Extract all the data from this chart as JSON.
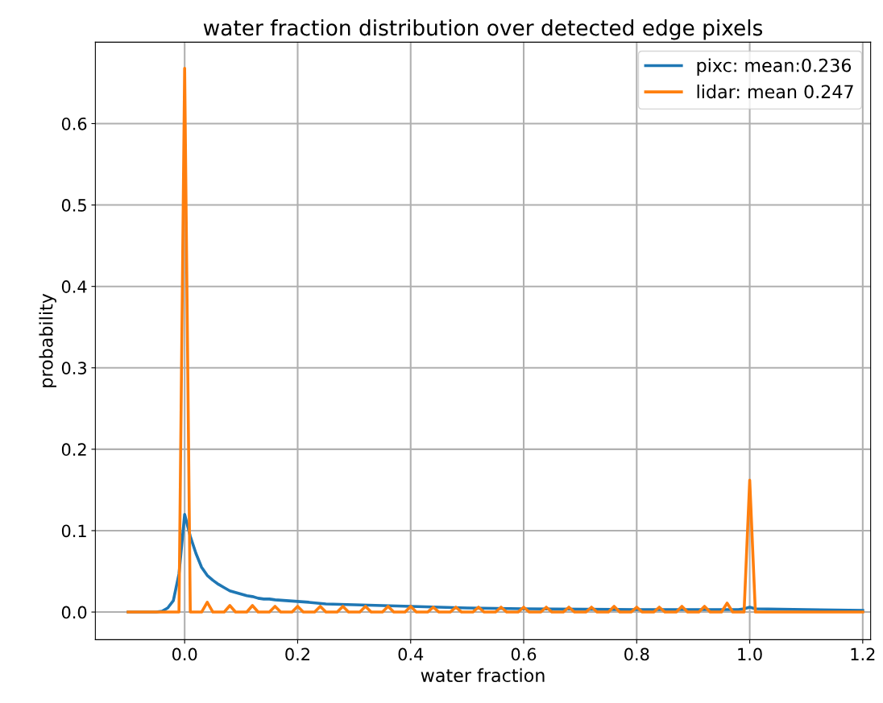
{
  "chart_data": {
    "type": "line",
    "title": "water fraction distribution over detected edge pixels",
    "xlabel": "water fraction",
    "ylabel": "probability",
    "series": [
      {
        "name": "pixc: mean:0.236",
        "color": "#1f77b4",
        "x": [
          -0.1,
          -0.05,
          -0.04,
          -0.03,
          -0.02,
          -0.01,
          0.0,
          0.01,
          0.02,
          0.03,
          0.04,
          0.05,
          0.06,
          0.07,
          0.08,
          0.09,
          0.1,
          0.11,
          0.12,
          0.13,
          0.14,
          0.15,
          0.16,
          0.18,
          0.2,
          0.22,
          0.25,
          0.3,
          0.35,
          0.4,
          0.5,
          0.6,
          0.8,
          0.98,
          0.99,
          1.0,
          1.01,
          1.1,
          1.2
        ],
        "values": [
          0.0,
          0.0,
          0.001,
          0.005,
          0.014,
          0.047,
          0.12,
          0.093,
          0.072,
          0.055,
          0.045,
          0.039,
          0.034,
          0.03,
          0.026,
          0.024,
          0.022,
          0.02,
          0.019,
          0.017,
          0.016,
          0.016,
          0.015,
          0.014,
          0.013,
          0.012,
          0.01,
          0.009,
          0.008,
          0.007,
          0.005,
          0.004,
          0.003,
          0.003,
          0.004,
          0.006,
          0.004,
          0.003,
          0.002
        ]
      },
      {
        "name": "lidar: mean 0.247",
        "color": "#ff7f0e",
        "x": [
          -0.1,
          -0.01,
          0.0,
          0.01,
          0.03,
          0.04,
          0.05,
          0.07,
          0.08,
          0.09,
          0.11,
          0.12,
          0.13,
          0.15,
          0.16,
          0.17,
          0.19,
          0.2,
          0.21,
          0.23,
          0.24,
          0.25,
          0.27,
          0.28,
          0.29,
          0.31,
          0.32,
          0.33,
          0.35,
          0.36,
          0.37,
          0.39,
          0.4,
          0.41,
          0.43,
          0.44,
          0.45,
          0.47,
          0.48,
          0.49,
          0.51,
          0.52,
          0.53,
          0.55,
          0.56,
          0.57,
          0.59,
          0.6,
          0.61,
          0.63,
          0.64,
          0.65,
          0.67,
          0.68,
          0.69,
          0.71,
          0.72,
          0.73,
          0.75,
          0.76,
          0.77,
          0.79,
          0.8,
          0.81,
          0.83,
          0.84,
          0.85,
          0.87,
          0.88,
          0.89,
          0.91,
          0.92,
          0.93,
          0.95,
          0.96,
          0.97,
          0.99,
          1.0,
          1.01,
          1.2
        ],
        "values": [
          0.0,
          0.0,
          0.668,
          0.0,
          0.0,
          0.012,
          0.0,
          0.0,
          0.008,
          0.0,
          0.0,
          0.008,
          0.0,
          0.0,
          0.007,
          0.0,
          0.0,
          0.007,
          0.0,
          0.0,
          0.007,
          0.0,
          0.0,
          0.007,
          0.0,
          0.0,
          0.007,
          0.0,
          0.0,
          0.007,
          0.0,
          0.0,
          0.007,
          0.0,
          0.0,
          0.006,
          0.0,
          0.0,
          0.006,
          0.0,
          0.0,
          0.006,
          0.0,
          0.0,
          0.006,
          0.0,
          0.0,
          0.006,
          0.0,
          0.0,
          0.006,
          0.0,
          0.0,
          0.006,
          0.0,
          0.0,
          0.006,
          0.0,
          0.0,
          0.007,
          0.0,
          0.0,
          0.006,
          0.0,
          0.0,
          0.006,
          0.0,
          0.0,
          0.007,
          0.0,
          0.0,
          0.007,
          0.0,
          0.0,
          0.011,
          0.0,
          0.0,
          0.162,
          0.0,
          0.0
        ]
      }
    ],
    "xlim": [
      -0.158,
      1.214
    ],
    "ylim": [
      -0.034,
      0.7
    ],
    "xticks": [
      {
        "value": 0,
        "label": "0.0"
      },
      0.2,
      0.4,
      0.6,
      0.8,
      {
        "value": 1,
        "label": "1.0"
      },
      1.2
    ],
    "yticks": [
      {
        "value": 0,
        "label": "0.0"
      },
      0.1,
      0.2,
      0.3,
      0.4,
      0.5,
      0.6
    ],
    "grid": true,
    "legend": "top right",
    "marker": "none",
    "line_style": "solid"
  }
}
